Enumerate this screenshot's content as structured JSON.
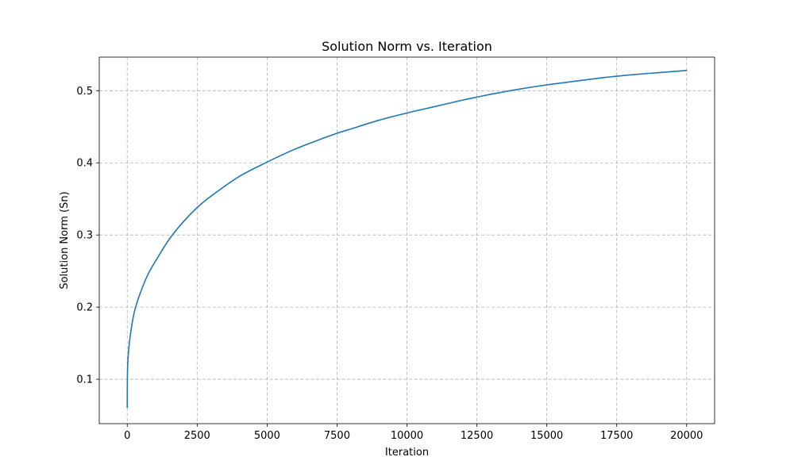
{
  "chart_data": {
    "type": "line",
    "title": "Solution Norm vs. Iteration",
    "xlabel": "Iteration",
    "ylabel": "Solution Norm (Sn)",
    "xlim": [
      -1000,
      21000
    ],
    "ylim": [
      0.0385,
      0.5465
    ],
    "x_ticks": [
      0,
      2500,
      5000,
      7500,
      10000,
      12500,
      15000,
      17500,
      20000
    ],
    "y_ticks": [
      0.1,
      0.2,
      0.3,
      0.4,
      0.5
    ],
    "y_tick_labels": [
      "0.1",
      "0.2",
      "0.3",
      "0.4",
      "0.5"
    ],
    "grid": true,
    "series_color": "#1f77b4",
    "series": [
      {
        "x": [
          1,
          10,
          50,
          100,
          200,
          300,
          500,
          750,
          1000,
          1500,
          2000,
          2500,
          3000,
          4000,
          5000,
          6000,
          7000,
          7500,
          8000,
          9000,
          10000,
          11000,
          12000,
          12500,
          13000,
          14000,
          15000,
          16000,
          17000,
          17500,
          18000,
          19000,
          20000
        ],
        "values": [
          0.061,
          0.112,
          0.14,
          0.158,
          0.183,
          0.2,
          0.223,
          0.246,
          0.263,
          0.294,
          0.318,
          0.338,
          0.354,
          0.381,
          0.401,
          0.419,
          0.434,
          0.441,
          0.447,
          0.459,
          0.469,
          0.478,
          0.487,
          0.491,
          0.495,
          0.502,
          0.508,
          0.513,
          0.518,
          0.52,
          0.522,
          0.525,
          0.528
        ]
      }
    ]
  }
}
